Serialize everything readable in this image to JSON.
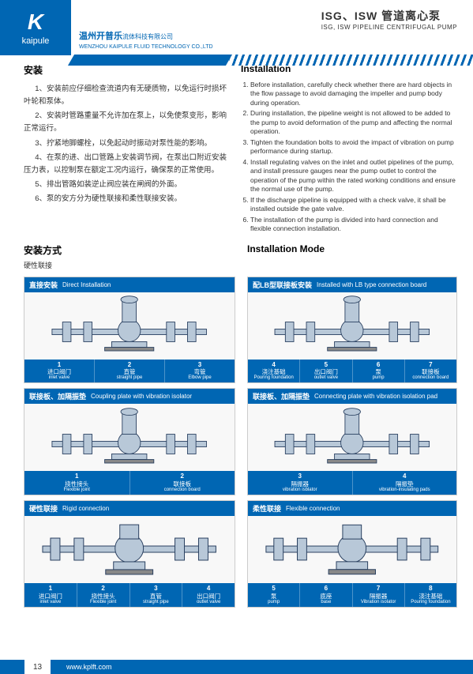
{
  "header": {
    "logo": "K",
    "logoText": "kaipule",
    "companyCn": "温州开普乐",
    "companyCnSuffix": "流体科技有限公司",
    "companyEn": "WENZHOU KAIPULE FLUID TECHNOLOGY CO.,LTD",
    "titleCn": "ISG、ISW 管道离心泵",
    "titleEn": "ISG, ISW PIPELINE CENTRIFUGAL PUMP"
  },
  "installCn": {
    "title": "安装",
    "items": [
      "1、安装前应仔细检查流道内有无硬质物，以免运行时损坏叶轮和泵体。",
      "2、安装时管路重量不允许加在泵上，以免使泵变形，影响正常运行。",
      "3、拧紧地脚螺栓，以免起动时振动对泵性能的影响。",
      "4、在泵的进、出口管路上安装调节阀，在泵出口附近安装压力表，以控制泵在额定工况内运行，确保泵的正常使用。",
      "5、排出管路如装逆止阀应装在闸阀的外面。",
      "6、泵的安方分为硬性联接和柔性联接安装。"
    ]
  },
  "installEn": {
    "title": "Installation",
    "items": [
      "Before installation, carefully check whether there are hard objects in the flow passage to avoid damaging the impeller and pump body during operation.",
      "During installation, the pipeline weight is not allowed to be added to the pump to avoid deformation of the pump and affecting the normal operation.",
      "Tighten the foundation bolts to avoid the impact of vibration on pump performance during startup.",
      "Install regulating valves on the inlet and outlet pipelines of the pump, and install pressure gauges near the pump outlet to control the operation of the pump within the rated working conditions and ensure the normal use of the pump.",
      "If the discharge pipeline is equipped with a check valve, it shall be installed outside the gate valve.",
      "The installation of the pump is divided into hard connection and flexible connection installation."
    ]
  },
  "modeCn": "安装方式",
  "modeEn": "Installation Mode",
  "hardConn": "硬性联接",
  "diagrams": [
    {
      "left": {
        "labelCn": "直接安装",
        "labelEn": "Direct Installation",
        "cells": [
          {
            "n": "1",
            "cn": "进口阀门",
            "en": "inlet valve"
          },
          {
            "n": "2",
            "cn": "直管",
            "en": "straight pipe"
          },
          {
            "n": "3",
            "cn": "弯管",
            "en": "Elbow pipe"
          }
        ]
      },
      "right": {
        "labelCn": "配LB型联接板安装",
        "labelEn": "Installed with LB type connection board",
        "cells": [
          {
            "n": "4",
            "cn": "浇注基础",
            "en": "Pouring foundation"
          },
          {
            "n": "5",
            "cn": "出口阀门",
            "en": "outlet valve"
          },
          {
            "n": "6",
            "cn": "泵",
            "en": "pump"
          },
          {
            "n": "7",
            "cn": "联接板",
            "en": "connection board"
          }
        ]
      }
    },
    {
      "left": {
        "labelCn": "联接板、加隔振垫",
        "labelEn": "Coupling plate with vibration isolator",
        "cells": [
          {
            "n": "1",
            "cn": "挠性接头",
            "en": "Flexible joint"
          },
          {
            "n": "2",
            "cn": "联接板",
            "en": "connection board"
          }
        ]
      },
      "right": {
        "labelCn": "联接板、加隔振垫",
        "labelEn": "Connecting plate with vibration isolation pad",
        "cells": [
          {
            "n": "3",
            "cn": "隔振器",
            "en": "vibration isblator"
          },
          {
            "n": "4",
            "cn": "隔振垫",
            "en": "vibration-insulating pads"
          }
        ]
      }
    },
    {
      "left": {
        "labelCn": "硬性联接",
        "labelEn": "Rigid connection",
        "cells": [
          {
            "n": "1",
            "cn": "进口阀门",
            "en": "inlet valve"
          },
          {
            "n": "2",
            "cn": "挠性接头",
            "en": "Flexible joint"
          },
          {
            "n": "3",
            "cn": "直管",
            "en": "straight pipe"
          },
          {
            "n": "4",
            "cn": "出口阀门",
            "en": "outlet valve"
          }
        ]
      },
      "right": {
        "labelCn": "柔性联接",
        "labelEn": "Flexible connection",
        "cells": [
          {
            "n": "5",
            "cn": "泵",
            "en": "pump"
          },
          {
            "n": "6",
            "cn": "底座",
            "en": "base"
          },
          {
            "n": "7",
            "cn": "隔振器",
            "en": "Vibration isolator"
          },
          {
            "n": "8",
            "cn": "浇注基础",
            "en": "Pouring foundation"
          }
        ]
      }
    }
  ],
  "footer": {
    "pageNum": "13",
    "url": "www.kplft.com"
  },
  "colors": {
    "primary": "#0066b3",
    "pumpFill": "#b8c8d8",
    "pumpStroke": "#2a4060"
  }
}
